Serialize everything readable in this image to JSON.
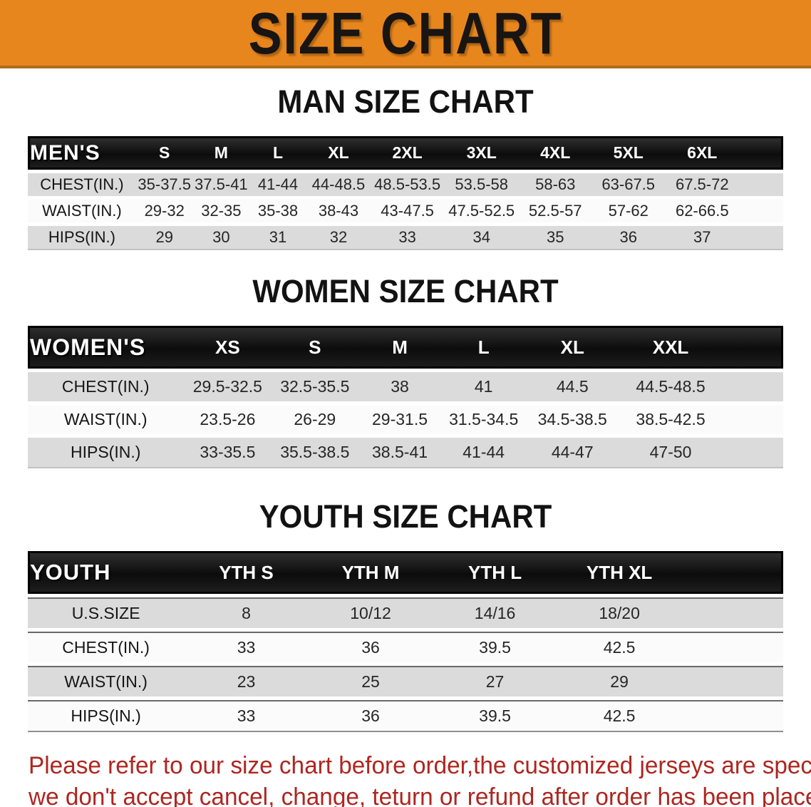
{
  "banner": {
    "title": "SIZE CHART"
  },
  "sections": [
    {
      "heading": "MAN SIZE CHART",
      "table": {
        "header_label": "MEN'S",
        "columns": [
          "S",
          "M",
          "L",
          "XL",
          "2XL",
          "3XL",
          "4XL",
          "5XL",
          "6XL"
        ],
        "rows": [
          {
            "label": "CHEST(IN.)",
            "values": [
              "35-37.5",
              "37.5-41",
              "41-44",
              "44-48.5",
              "48.5-53.5",
              "53.5-58",
              "58-63",
              "63-67.5",
              "67.5-72"
            ]
          },
          {
            "label": "WAIST(IN.)",
            "values": [
              "29-32",
              "32-35",
              "35-38",
              "38-43",
              "43-47.5",
              "47.5-52.5",
              "52.5-57",
              "57-62",
              "62-66.5"
            ]
          },
          {
            "label": "HIPS(IN.)",
            "values": [
              "29",
              "30",
              "31",
              "32",
              "33",
              "34",
              "35",
              "36",
              "37"
            ]
          }
        ]
      }
    },
    {
      "heading": "WOMEN SIZE CHART",
      "table": {
        "header_label": "WOMEN'S",
        "columns": [
          "XS",
          "S",
          "M",
          "L",
          "XL",
          "XXL"
        ],
        "rows": [
          {
            "label": "CHEST(IN.)",
            "values": [
              "29.5-32.5",
              "32.5-35.5",
              "38",
              "41",
              "44.5",
              "44.5-48.5"
            ]
          },
          {
            "label": "WAIST(IN.)",
            "values": [
              "23.5-26",
              "26-29",
              "29-31.5",
              "31.5-34.5",
              "34.5-38.5",
              "38.5-42.5"
            ]
          },
          {
            "label": "HIPS(IN.)",
            "values": [
              "33-35.5",
              "35.5-38.5",
              "38.5-41",
              "41-44",
              "44-47",
              "47-50"
            ]
          }
        ]
      }
    },
    {
      "heading": "YOUTH SIZE CHART",
      "table": {
        "header_label": "YOUTH",
        "columns": [
          "YTH S",
          "YTH M",
          "YTH L",
          "YTH XL"
        ],
        "rows": [
          {
            "label": "U.S.SIZE",
            "values": [
              "8",
              "10/12",
              "14/16",
              "18/20"
            ]
          },
          {
            "label": "CHEST(IN.)",
            "values": [
              "33",
              "36",
              "39.5",
              "42.5"
            ]
          },
          {
            "label": "WAIST(IN.)",
            "values": [
              "23",
              "25",
              "27",
              "29"
            ]
          },
          {
            "label": "HIPS(IN.)",
            "values": [
              "33",
              "36",
              "39.5",
              "42.5"
            ]
          }
        ]
      }
    }
  ],
  "footer": {
    "line1": "Please refer to our size chart before order,the customized jerseys are special products,",
    "line2": "we don't accept cancel, change, teturn or refund after order has been placed!"
  },
  "colors": {
    "banner_orange": "#E8861E",
    "banner_edge": "#B06A1A",
    "header_band_black": "#121212",
    "row_gray": "#DBDBDB",
    "row_white": "#FBFBFB",
    "footer_red": "#AE2620"
  }
}
